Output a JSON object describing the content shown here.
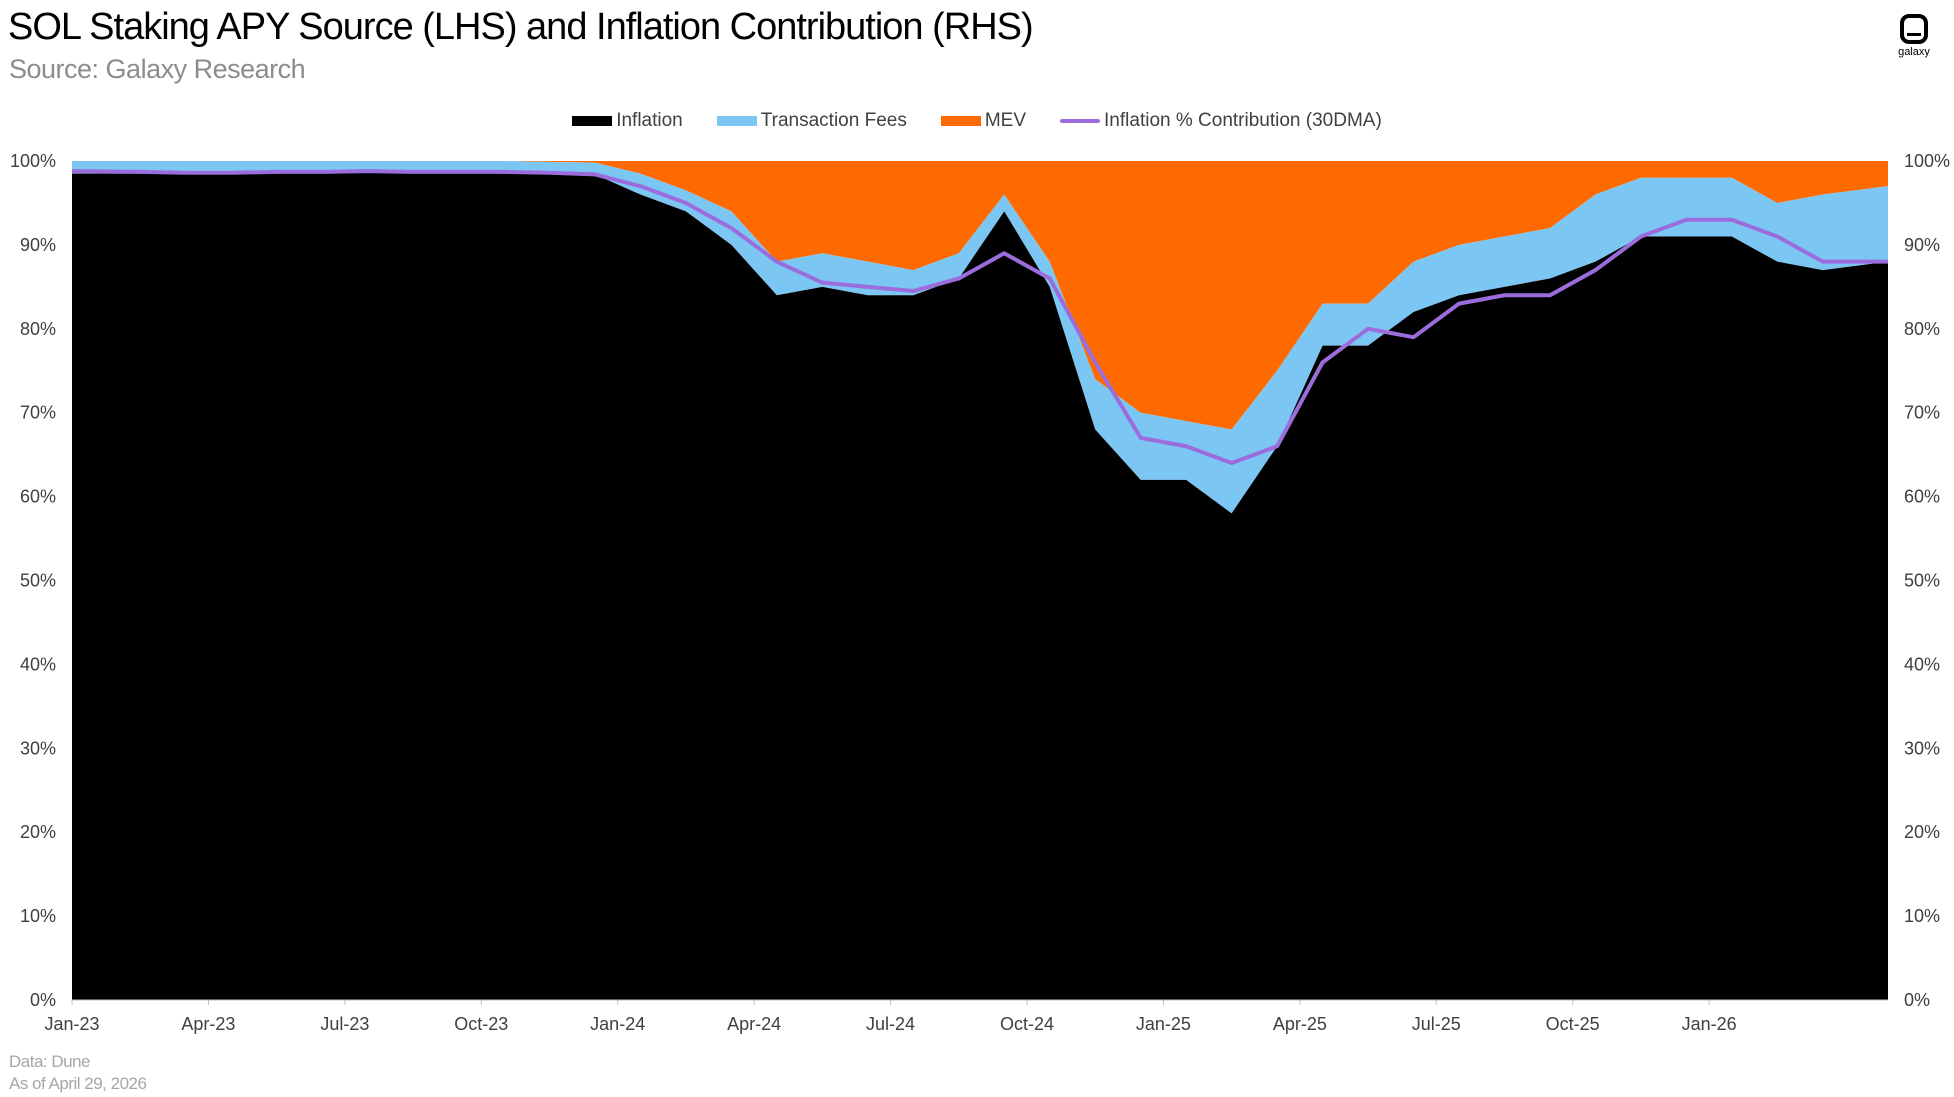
{
  "header": {
    "title": "SOL Staking APY Source (LHS) and Inflation Contribution (RHS)",
    "subtitle": "Source: Galaxy Research",
    "logo_text": "galaxy"
  },
  "footer": {
    "data_note": "Data: Dune",
    "as_of": "As of April 29, 2026"
  },
  "colors": {
    "inflation": "#000000",
    "transaction_fees": "#7cc6f4",
    "mev": "#ff6a00",
    "line": "#9b6ddc"
  },
  "chart_data": {
    "type": "area",
    "stacked": true,
    "stack_normalized_percent": true,
    "title": "SOL Staking APY Source (LHS) and Inflation Contribution (RHS)",
    "x_tick_labels": [
      "Jan-23",
      "Apr-23",
      "Jul-23",
      "Oct-23",
      "Jan-24",
      "Apr-24",
      "Jul-24",
      "Oct-24",
      "Jan-25",
      "Apr-25",
      "Jul-25",
      "Oct-25",
      "Jan-26"
    ],
    "x_range": [
      "2023-01-01",
      "2026-04-29"
    ],
    "y_left": {
      "range": [
        0,
        100
      ],
      "ticks": [
        "0%",
        "10%",
        "20%",
        "30%",
        "40%",
        "50%",
        "60%",
        "70%",
        "80%",
        "90%",
        "100%"
      ]
    },
    "y_right": {
      "range": [
        0,
        100
      ],
      "ticks": [
        "0%",
        "10%",
        "20%",
        "30%",
        "40%",
        "50%",
        "60%",
        "70%",
        "80%",
        "90%",
        "100%"
      ]
    },
    "legend": {
      "position": "top-center"
    },
    "grid": false,
    "x": [
      "2023-01",
      "2023-02",
      "2023-03",
      "2023-04",
      "2023-05",
      "2023-06",
      "2023-07",
      "2023-08",
      "2023-09",
      "2023-10",
      "2023-11",
      "2023-12",
      "2024-01",
      "2024-02",
      "2024-03",
      "2024-04",
      "2024-05",
      "2024-06",
      "2024-07",
      "2024-08",
      "2024-09",
      "2024-10",
      "2024-11",
      "2024-12",
      "2025-01",
      "2025-02",
      "2025-03",
      "2025-04",
      "2025-05",
      "2025-06",
      "2025-07",
      "2025-08",
      "2025-09",
      "2025-10",
      "2025-11",
      "2025-12",
      "2026-01",
      "2026-02",
      "2026-03",
      "2026-04"
    ],
    "series": [
      {
        "name": "Inflation",
        "axis": "left",
        "kind": "area",
        "values": [
          98.5,
          98.5,
          98.6,
          98.6,
          98.5,
          98.6,
          98.7,
          98.6,
          98.6,
          98.5,
          98.6,
          98.4,
          96,
          94,
          90,
          84,
          85,
          84,
          84,
          86,
          94,
          85,
          68,
          62,
          62,
          58,
          66,
          78,
          78,
          82,
          84,
          85,
          86,
          88,
          91,
          91,
          91,
          88,
          87,
          88
        ]
      },
      {
        "name": "Transaction Fees",
        "axis": "left",
        "kind": "area",
        "values": [
          1.5,
          1.5,
          1.4,
          1.4,
          1.5,
          1.4,
          1.3,
          1.4,
          1.4,
          1.5,
          1.3,
          1.4,
          2.5,
          2.5,
          4,
          4,
          4,
          4,
          3,
          3,
          2,
          3,
          6,
          8,
          7,
          10,
          9,
          5,
          5,
          6,
          6,
          6,
          6,
          8,
          7,
          7,
          7,
          7,
          9,
          9
        ]
      },
      {
        "name": "MEV",
        "axis": "left",
        "kind": "area",
        "values": [
          0,
          0,
          0,
          0,
          0,
          0,
          0,
          0,
          0,
          0,
          0.1,
          0.2,
          1.5,
          3.5,
          6,
          12,
          11,
          12,
          13,
          11,
          4,
          12,
          26,
          30,
          31,
          32,
          25,
          17,
          17,
          12,
          10,
          9,
          8,
          4,
          2,
          2,
          2,
          5,
          4,
          3
        ]
      },
      {
        "name": "Inflation % Contribution (30DMA)",
        "axis": "right",
        "kind": "line",
        "values": [
          98.8,
          98.7,
          98.6,
          98.6,
          98.7,
          98.7,
          98.8,
          98.7,
          98.7,
          98.7,
          98.6,
          98.4,
          97,
          95,
          92,
          88,
          85.5,
          85,
          84.5,
          86,
          89,
          86,
          76,
          67,
          66,
          64,
          66,
          76,
          80,
          79,
          83,
          84,
          84,
          87,
          91,
          93,
          93,
          91,
          88,
          88
        ]
      }
    ]
  }
}
